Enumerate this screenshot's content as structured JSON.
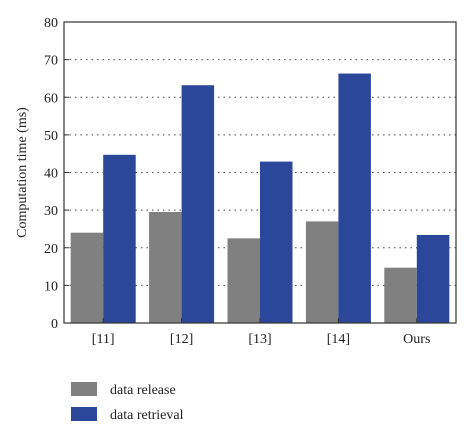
{
  "chart_data": {
    "type": "bar",
    "categories": [
      "[11]",
      "[12]",
      "[13]",
      "[14]",
      "Ours"
    ],
    "series": [
      {
        "name": "data release",
        "values": [
          24,
          29.5,
          22.5,
          27,
          14.7
        ],
        "color": "#808080"
      },
      {
        "name": "data retrieval",
        "values": [
          44.7,
          63.2,
          42.9,
          66.3,
          23.4
        ],
        "color": "#2b4799"
      }
    ],
    "title": "",
    "xlabel": "",
    "ylabel": "Computation time (ms)",
    "ylim": [
      0,
      80
    ],
    "yticks": [
      "0",
      "10",
      "20",
      "30",
      "40",
      "50",
      "60",
      "70",
      "80"
    ],
    "grid": "horizontal dotted",
    "legend_position": "bottom-left"
  }
}
